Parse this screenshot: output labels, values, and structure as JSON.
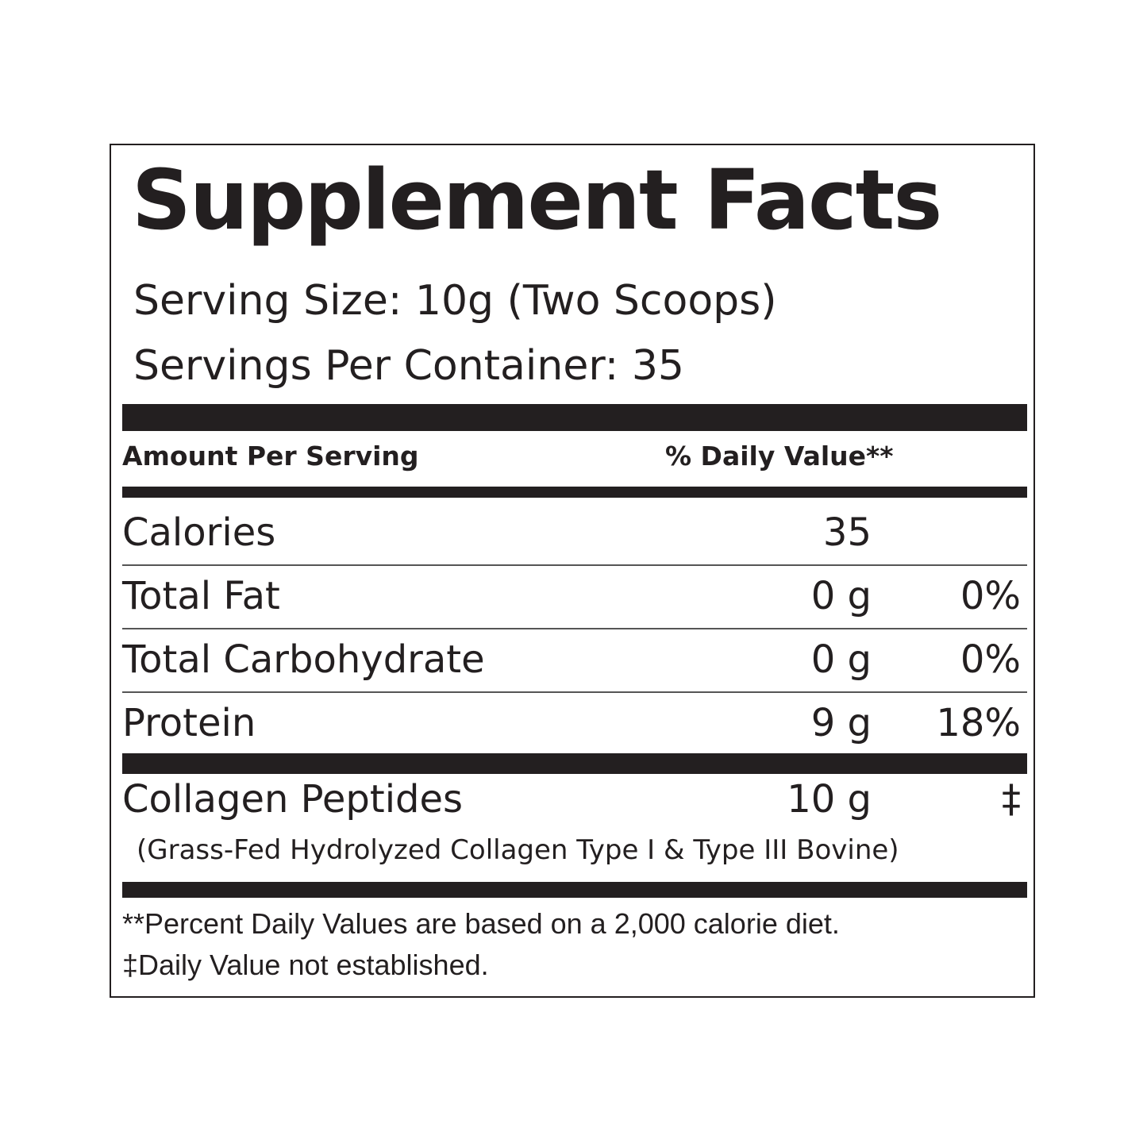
{
  "title": "Supplement Facts",
  "serving_size": "Serving Size: 10g (Two Scoops)",
  "servings_per_container": "Servings Per Container: 35",
  "header": {
    "amount": "Amount Per Serving",
    "daily_value": "% Daily Value**"
  },
  "rows": [
    {
      "name": "Calories",
      "amount": "35",
      "dv": null
    },
    {
      "name": "Total Fat",
      "amount": "0 g",
      "dv": "0%"
    },
    {
      "name": "Total Carbohydrate",
      "amount": "0 g",
      "dv": "0%"
    },
    {
      "name": "Protein",
      "amount": "9 g",
      "dv": "18%"
    }
  ],
  "collagen": {
    "name": "Collagen Peptides",
    "amount": "10 g",
    "dv": "‡",
    "note": "(Grass-Fed Hydrolyzed Collagen Type I & Type III Bovine)"
  },
  "footnotes": [
    "**Percent Daily Values are based on a 2,000 calorie diet.",
    "‡Daily Value not established."
  ]
}
